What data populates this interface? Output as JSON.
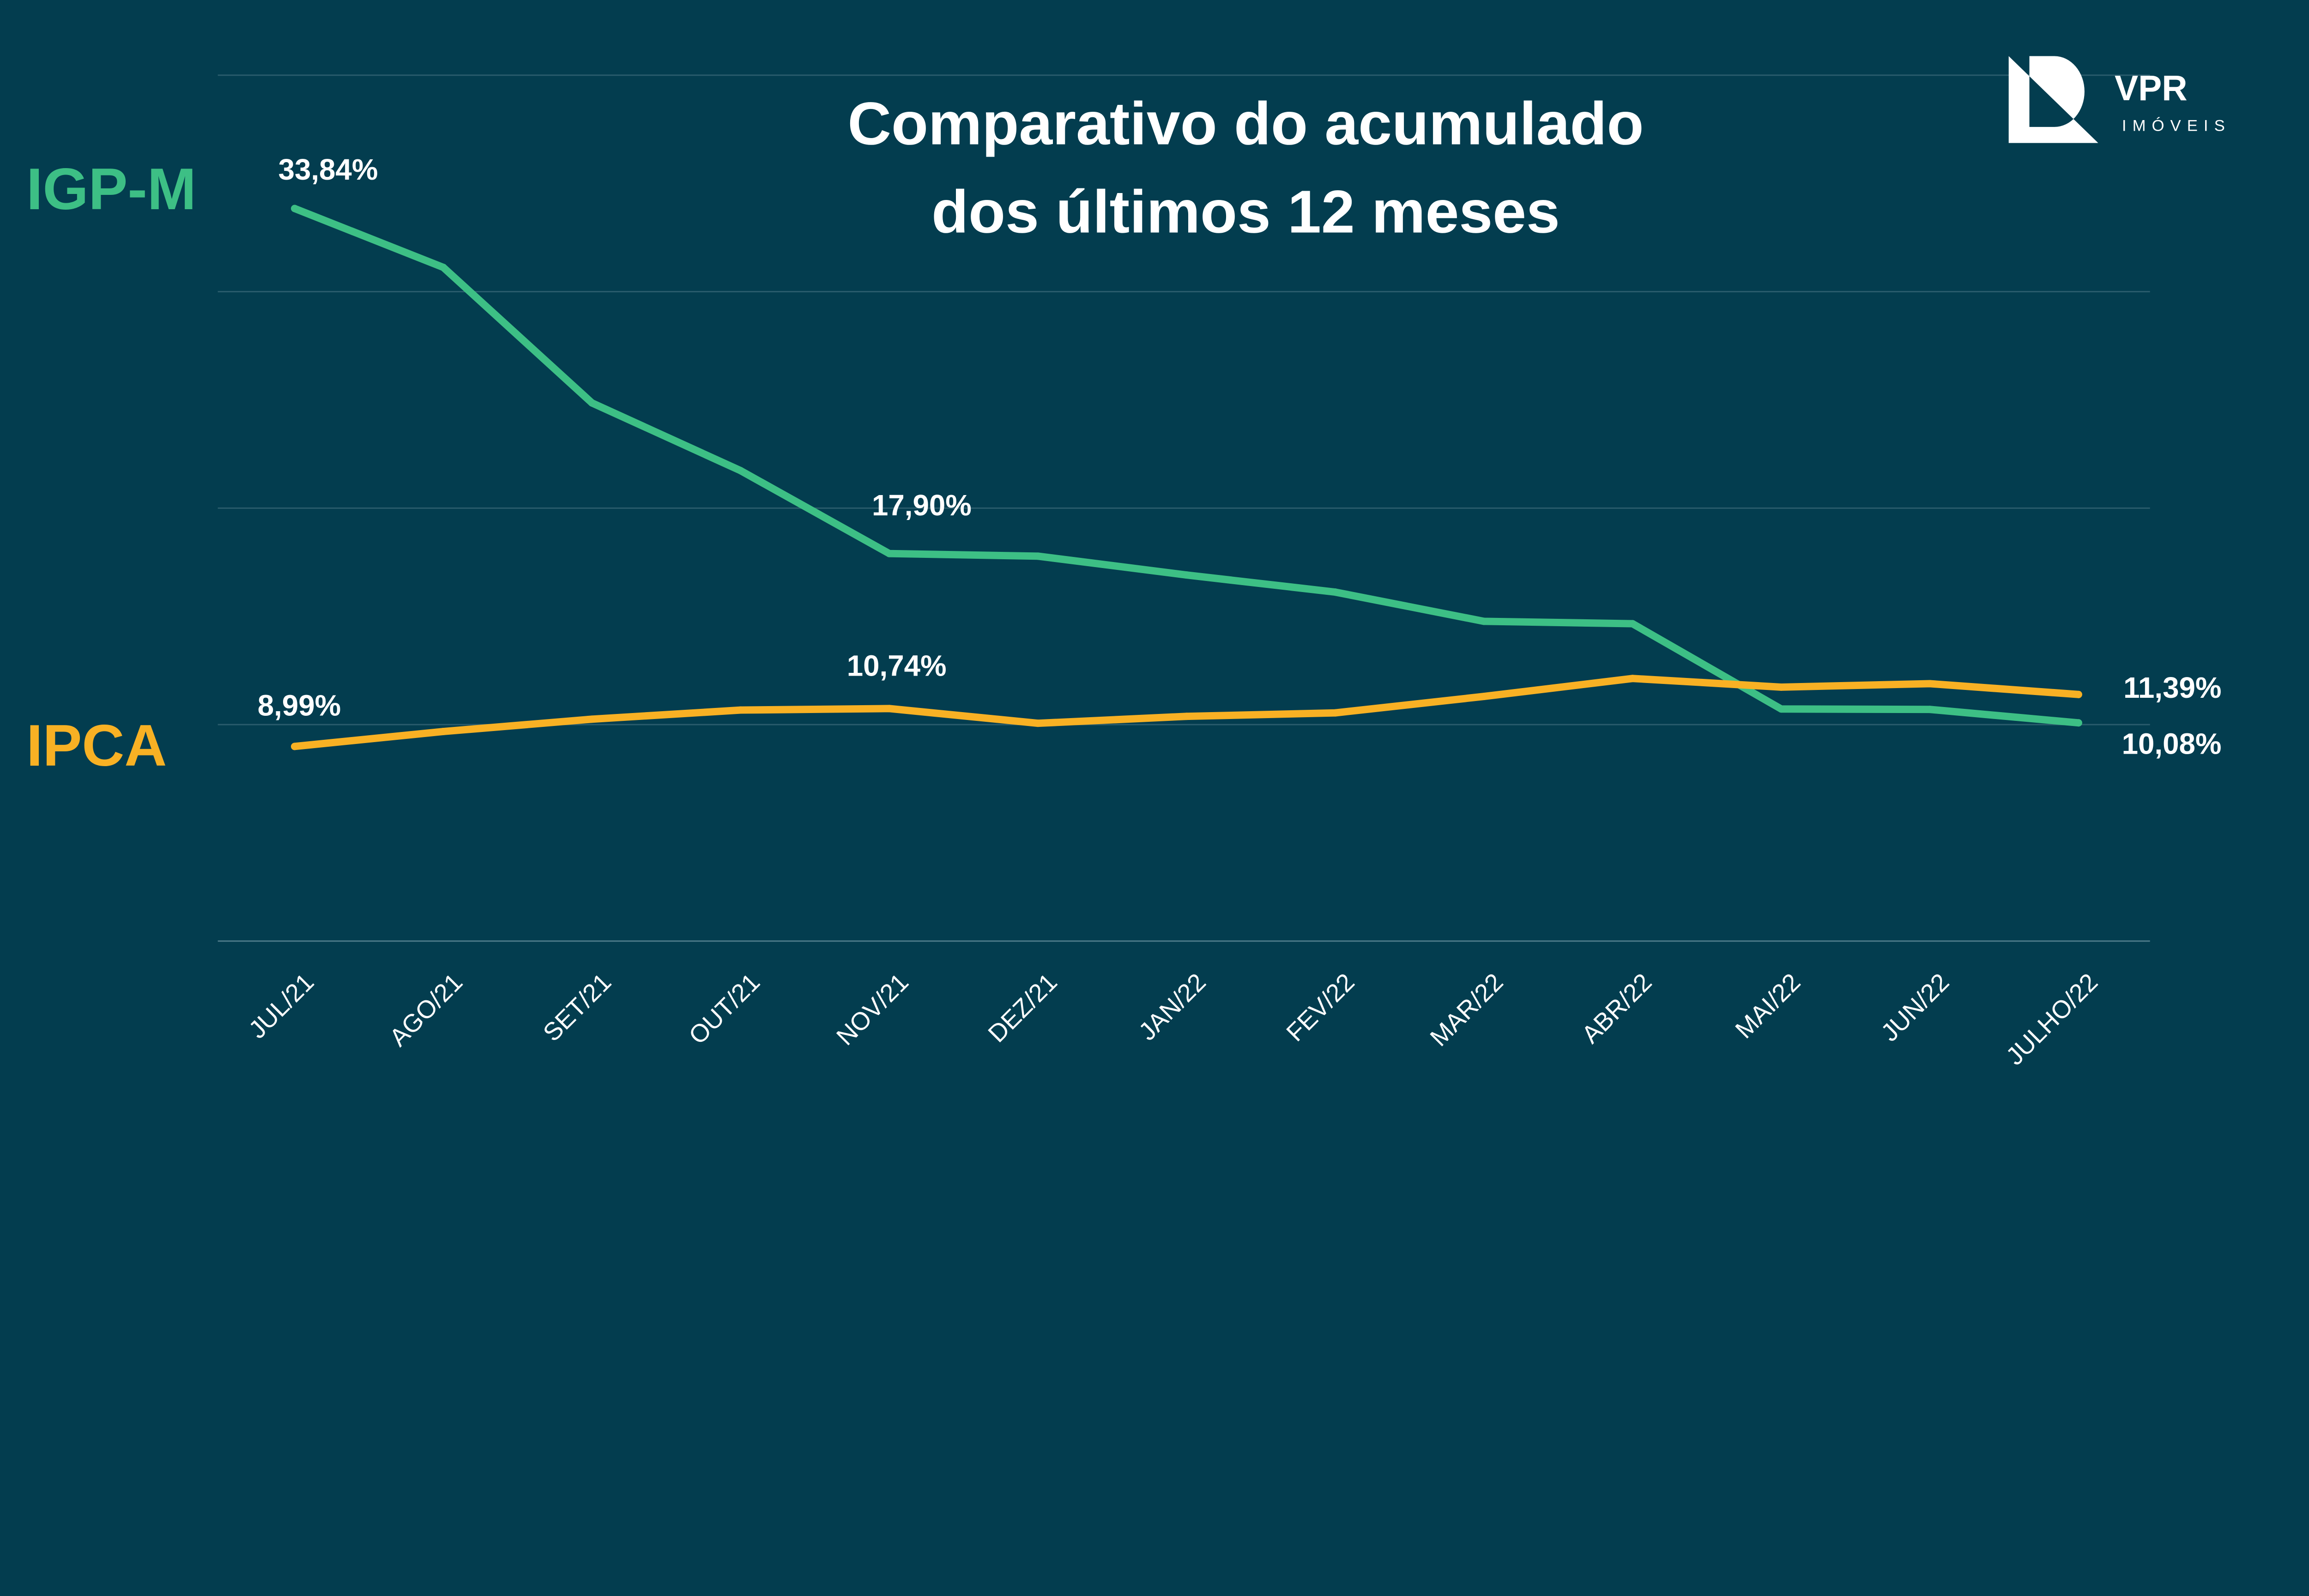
{
  "brand": {
    "logo_text": "VPR",
    "logo_subtext": "IMÓVEIS"
  },
  "colors": {
    "background": "#033d4f",
    "igpm": "#3dbf85",
    "ipca": "#f8b124",
    "grid": "#2b5d6d",
    "text": "#ffffff"
  },
  "chart_data": {
    "type": "line",
    "title_lines": [
      "Comparativo do acumulado",
      "dos últimos 12 meses"
    ],
    "categories": [
      "JUL/21",
      "AGO/21",
      "SET/21",
      "OUT/21",
      "NOV/21",
      "DEZ/21",
      "JAN/22",
      "FEV/22",
      "MAR/22",
      "ABR/22",
      "MAI/22",
      "JUN/22",
      "JULHO/22"
    ],
    "ylim": [
      0,
      40
    ],
    "grid": true,
    "y_unit": "%",
    "series": [
      {
        "name": "IGP-M",
        "color": "#3dbf85",
        "values": [
          33.84,
          31.12,
          24.86,
          21.73,
          17.9,
          17.78,
          16.91,
          16.12,
          14.77,
          14.66,
          10.72,
          10.7,
          10.08
        ]
      },
      {
        "name": "IPCA",
        "color": "#f8b124",
        "values": [
          8.99,
          9.68,
          10.25,
          10.67,
          10.74,
          10.06,
          10.38,
          10.54,
          11.3,
          12.13,
          11.73,
          11.89,
          11.39
        ]
      }
    ],
    "data_labels": {
      "igpm_first": "33,84%",
      "igpm_nov": "17,90%",
      "igpm_last": "10,08%",
      "ipca_first": "8,99%",
      "ipca_nov": "10,74%",
      "ipca_last": "11,39%"
    }
  }
}
